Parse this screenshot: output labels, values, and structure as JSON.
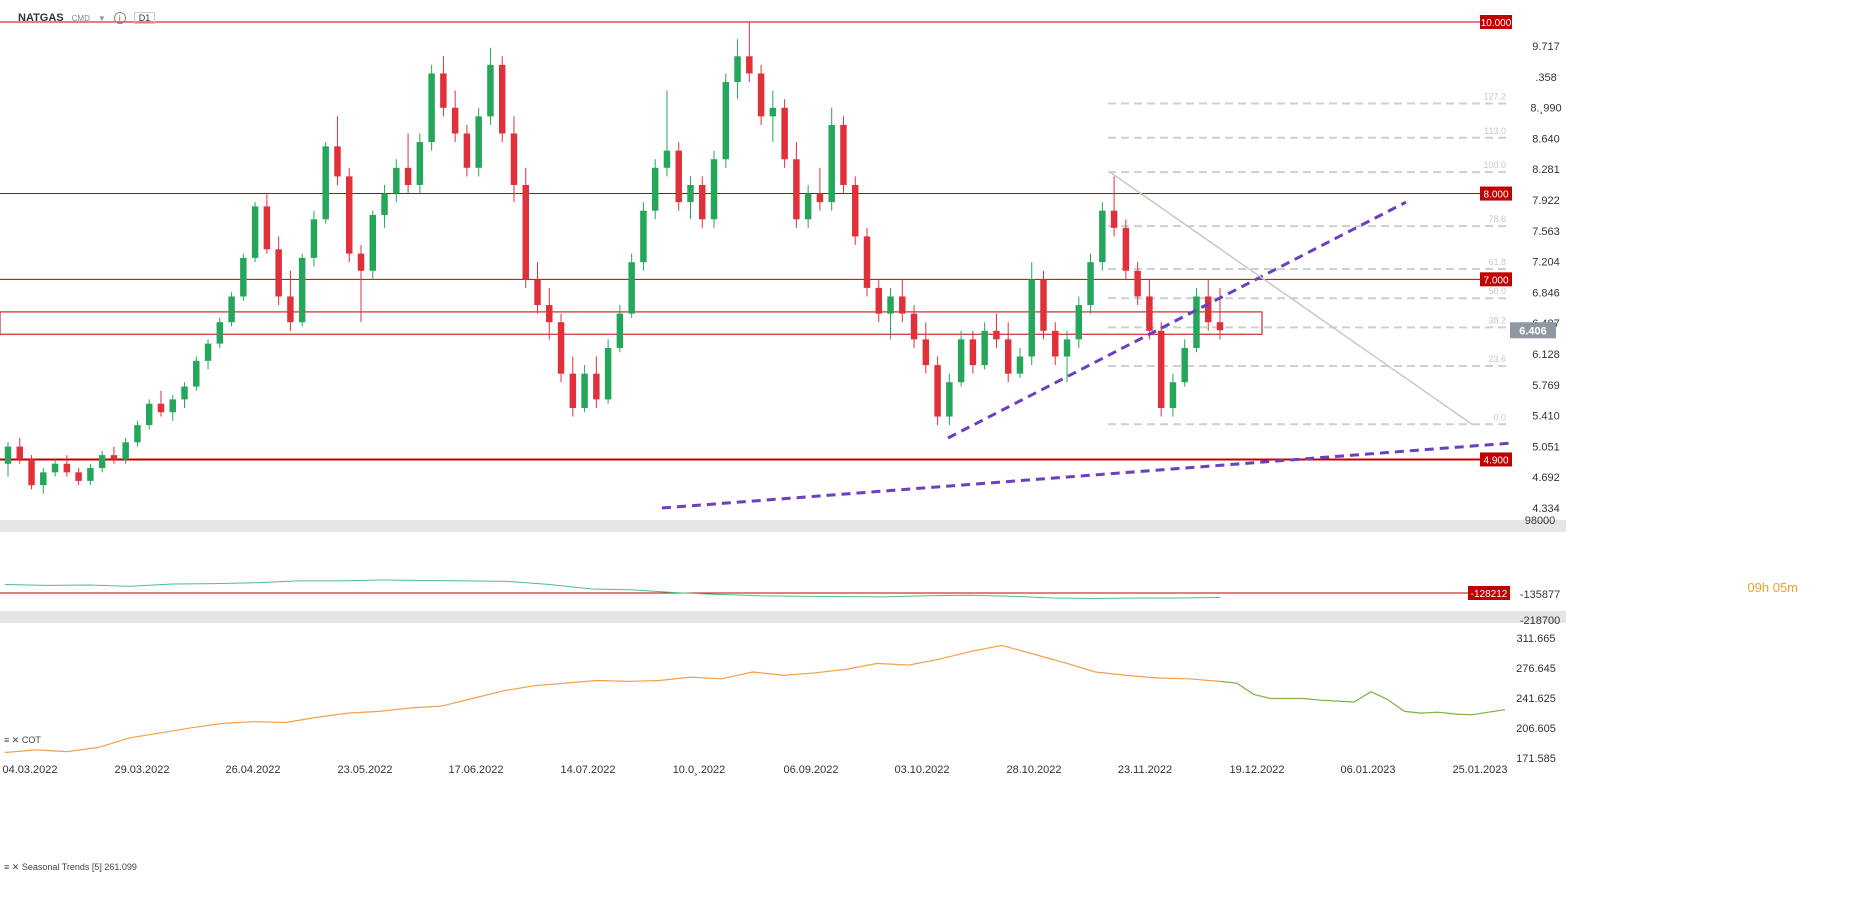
{
  "header": {
    "symbol": "NATGAS",
    "exchange": "CMD",
    "timeframe": "D1"
  },
  "timer": "09h 05m",
  "current_price": "6.406",
  "cot_label": "COT",
  "seasonal_label": "Seasonal  Trends [5]  261.099",
  "colors": {
    "up": "#26a65b",
    "down": "#e0303a",
    "level": "#c00000",
    "trend": "#6a3fc1",
    "seasonal": "#f5a04a",
    "seasonal_fwd": "#7cb342",
    "cot": "#4cbf8e"
  },
  "chart_data": [
    {
      "type": "candlestick",
      "title": "",
      "ylim": [
        4.334,
        10.0
      ],
      "y_ticks": [
        "9.717",
        ".358",
        "8.¸990",
        "8.640",
        "8.281",
        "7.922",
        "7.563",
        "7.204",
        "6.846",
        "6.487",
        "6.128",
        "5.769",
        "5.410",
        "5.051",
        "4.692",
        "4.334"
      ],
      "x_ticks": [
        "04.03.2022",
        "29.03.2022",
        "26.04.2022",
        "23.05.2022",
        "17.06.2022",
        "14.07.2022",
        "10.0¸.2022",
        "06.09.2022",
        "03.10.2022",
        "28.10.2022",
        "23.11.2022",
        "19.12.2022",
        "06.01.2023",
        "25.01.2023"
      ],
      "horizontal_levels": [
        {
          "label": "10.000",
          "value": 10.0
        },
        {
          "label": "8.000",
          "value": 8.0
        },
        {
          "label": "7.000",
          "value": 7.0
        },
        {
          "label": "4.900",
          "value": 4.9
        }
      ],
      "fib_levels": [
        {
          "label": "127.2",
          "value": 9.05
        },
        {
          "label": "113.0",
          "value": 8.65
        },
        {
          "label": "100.0",
          "value": 8.25
        },
        {
          "label": "78.6",
          "value": 7.62
        },
        {
          "label": "61.8",
          "value": 7.12
        },
        {
          "label": "50.0",
          "value": 6.78
        },
        {
          "label": "38.2",
          "value": 6.44
        },
        {
          "label": "23.6",
          "value": 5.99
        },
        {
          "label": "0.0",
          "value": 5.31
        }
      ],
      "current_price": 6.406,
      "candles": [
        [
          4.85,
          5.1,
          4.7,
          5.05
        ],
        [
          5.05,
          5.15,
          4.85,
          4.9
        ],
        [
          4.9,
          4.95,
          4.55,
          4.6
        ],
        [
          4.6,
          4.8,
          4.5,
          4.75
        ],
        [
          4.75,
          4.9,
          4.7,
          4.85
        ],
        [
          4.85,
          4.95,
          4.7,
          4.75
        ],
        [
          4.75,
          4.8,
          4.6,
          4.65
        ],
        [
          4.65,
          4.85,
          4.6,
          4.8
        ],
        [
          4.8,
          5.0,
          4.75,
          4.95
        ],
        [
          4.95,
          5.05,
          4.85,
          4.9
        ],
        [
          4.9,
          5.15,
          4.85,
          5.1
        ],
        [
          5.1,
          5.35,
          5.05,
          5.3
        ],
        [
          5.3,
          5.6,
          5.25,
          5.55
        ],
        [
          5.55,
          5.7,
          5.4,
          5.45
        ],
        [
          5.45,
          5.65,
          5.35,
          5.6
        ],
        [
          5.6,
          5.8,
          5.5,
          5.75
        ],
        [
          5.75,
          6.1,
          5.7,
          6.05
        ],
        [
          6.05,
          6.3,
          5.95,
          6.25
        ],
        [
          6.25,
          6.55,
          6.2,
          6.5
        ],
        [
          6.5,
          6.85,
          6.45,
          6.8
        ],
        [
          6.8,
          7.3,
          6.75,
          7.25
        ],
        [
          7.25,
          7.9,
          7.2,
          7.85
        ],
        [
          7.85,
          8.0,
          7.3,
          7.35
        ],
        [
          7.35,
          7.5,
          6.7,
          6.8
        ],
        [
          6.8,
          7.1,
          6.4,
          6.5
        ],
        [
          6.5,
          7.3,
          6.45,
          7.25
        ],
        [
          7.25,
          7.8,
          7.15,
          7.7
        ],
        [
          7.7,
          8.6,
          7.65,
          8.55
        ],
        [
          8.55,
          8.9,
          8.1,
          8.2
        ],
        [
          8.2,
          8.3,
          7.2,
          7.3
        ],
        [
          7.3,
          7.4,
          6.5,
          7.1
        ],
        [
          7.1,
          7.8,
          7.0,
          7.75
        ],
        [
          7.75,
          8.1,
          7.6,
          8.0
        ],
        [
          8.0,
          8.4,
          7.9,
          8.3
        ],
        [
          8.3,
          8.7,
          8.0,
          8.1
        ],
        [
          8.1,
          8.7,
          8.0,
          8.6
        ],
        [
          8.6,
          9.5,
          8.5,
          9.4
        ],
        [
          9.4,
          9.6,
          8.9,
          9.0
        ],
        [
          9.0,
          9.2,
          8.6,
          8.7
        ],
        [
          8.7,
          8.8,
          8.2,
          8.3
        ],
        [
          8.3,
          9.0,
          8.2,
          8.9
        ],
        [
          8.9,
          9.7,
          8.8,
          9.5
        ],
        [
          9.5,
          9.6,
          8.6,
          8.7
        ],
        [
          8.7,
          8.9,
          7.9,
          8.1
        ],
        [
          8.1,
          8.3,
          6.9,
          7.0
        ],
        [
          7.0,
          7.2,
          6.6,
          6.7
        ],
        [
          6.7,
          6.9,
          6.3,
          6.5
        ],
        [
          6.5,
          6.6,
          5.8,
          5.9
        ],
        [
          5.9,
          6.1,
          5.4,
          5.5
        ],
        [
          5.5,
          6.0,
          5.45,
          5.9
        ],
        [
          5.9,
          6.1,
          5.5,
          5.6
        ],
        [
          5.6,
          6.3,
          5.55,
          6.2
        ],
        [
          6.2,
          6.7,
          6.15,
          6.6
        ],
        [
          6.6,
          7.3,
          6.55,
          7.2
        ],
        [
          7.2,
          7.9,
          7.1,
          7.8
        ],
        [
          7.8,
          8.4,
          7.7,
          8.3
        ],
        [
          8.3,
          9.2,
          8.2,
          8.5
        ],
        [
          8.5,
          8.6,
          7.8,
          7.9
        ],
        [
          7.9,
          8.2,
          7.7,
          8.1
        ],
        [
          8.1,
          8.2,
          7.6,
          7.7
        ],
        [
          7.7,
          8.5,
          7.6,
          8.4
        ],
        [
          8.4,
          9.4,
          8.3,
          9.3
        ],
        [
          9.3,
          9.8,
          9.1,
          9.6
        ],
        [
          9.6,
          10.0,
          9.3,
          9.4
        ],
        [
          9.4,
          9.5,
          8.8,
          8.9
        ],
        [
          8.9,
          9.2,
          8.6,
          9.0
        ],
        [
          9.0,
          9.1,
          8.3,
          8.4
        ],
        [
          8.4,
          8.6,
          7.6,
          7.7
        ],
        [
          7.7,
          8.1,
          7.6,
          8.0
        ],
        [
          8.0,
          8.3,
          7.8,
          7.9
        ],
        [
          7.9,
          9.0,
          7.8,
          8.8
        ],
        [
          8.8,
          8.9,
          8.0,
          8.1
        ],
        [
          8.1,
          8.2,
          7.4,
          7.5
        ],
        [
          7.5,
          7.6,
          6.8,
          6.9
        ],
        [
          6.9,
          7.0,
          6.5,
          6.6
        ],
        [
          6.6,
          6.9,
          6.3,
          6.8
        ],
        [
          6.8,
          7.0,
          6.5,
          6.6
        ],
        [
          6.6,
          6.7,
          6.2,
          6.3
        ],
        [
          6.3,
          6.5,
          5.9,
          6.0
        ],
        [
          6.0,
          6.1,
          5.3,
          5.4
        ],
        [
          5.4,
          5.9,
          5.3,
          5.8
        ],
        [
          5.8,
          6.4,
          5.75,
          6.3
        ],
        [
          6.3,
          6.4,
          5.9,
          6.0
        ],
        [
          6.0,
          6.5,
          5.95,
          6.4
        ],
        [
          6.4,
          6.6,
          6.2,
          6.3
        ],
        [
          6.3,
          6.5,
          5.8,
          5.9
        ],
        [
          5.9,
          6.2,
          5.85,
          6.1
        ],
        [
          6.1,
          7.2,
          6.0,
          7.0
        ],
        [
          7.0,
          7.1,
          6.3,
          6.4
        ],
        [
          6.4,
          6.5,
          6.0,
          6.1
        ],
        [
          6.1,
          6.4,
          5.8,
          6.3
        ],
        [
          6.3,
          6.8,
          6.2,
          6.7
        ],
        [
          6.7,
          7.3,
          6.6,
          7.2
        ],
        [
          7.2,
          7.9,
          7.1,
          7.8
        ],
        [
          7.8,
          8.2,
          7.5,
          7.6
        ],
        [
          7.6,
          7.7,
          7.0,
          7.1
        ],
        [
          7.1,
          7.2,
          6.7,
          6.8
        ],
        [
          6.8,
          7.0,
          6.3,
          6.4
        ],
        [
          6.4,
          6.5,
          5.4,
          5.5
        ],
        [
          5.5,
          5.9,
          5.4,
          5.8
        ],
        [
          5.8,
          6.3,
          5.75,
          6.2
        ],
        [
          6.2,
          6.9,
          6.15,
          6.8
        ],
        [
          6.8,
          7.0,
          6.4,
          6.5
        ],
        [
          6.5,
          6.9,
          6.3,
          6.406
        ]
      ]
    },
    {
      "type": "line",
      "title": "",
      "panel": "COT",
      "ylim": [
        -218700,
        98000
      ],
      "y_ticks": [
        "98000",
        "-135877",
        "-218700"
      ],
      "level_label": "-128212",
      "level_value": -128212,
      "values": [
        -100000,
        -102000,
        -101000,
        -104000,
        -99000,
        -98000,
        -96000,
        -92000,
        -92000,
        -90000,
        -91000,
        -92000,
        -93000,
        -100000,
        -110000,
        -112000,
        -118000,
        -122000,
        -125000,
        -126000,
        -127000,
        -127500,
        -125000,
        -124000,
        -126000,
        -130000,
        -131000,
        -130000,
        -130000,
        -129000
      ]
    },
    {
      "type": "line",
      "title": "",
      "panel": "Seasonal Trends",
      "ylim": [
        171.585,
        311.665
      ],
      "y_ticks": [
        "311.665",
        "276.645",
        "241.625",
        "206.605",
        "171.585"
      ],
      "series": [
        {
          "name": "Seasonal  Trends [5]",
          "values": [
            178,
            181,
            179,
            184,
            195,
            201,
            207,
            212,
            214,
            213,
            219,
            224,
            226,
            230,
            232,
            241,
            250,
            256,
            259,
            262,
            261,
            262,
            266,
            264,
            272,
            268,
            271,
            275,
            282,
            280,
            287,
            296,
            303,
            293,
            283,
            272,
            268,
            265,
            264,
            261
          ]
        },
        {
          "name": "",
          "values": [
            261,
            259,
            246,
            241,
            241,
            241,
            239,
            238,
            237,
            249,
            240,
            226,
            224,
            225,
            223,
            222,
            225,
            228
          ]
        }
      ]
    }
  ]
}
